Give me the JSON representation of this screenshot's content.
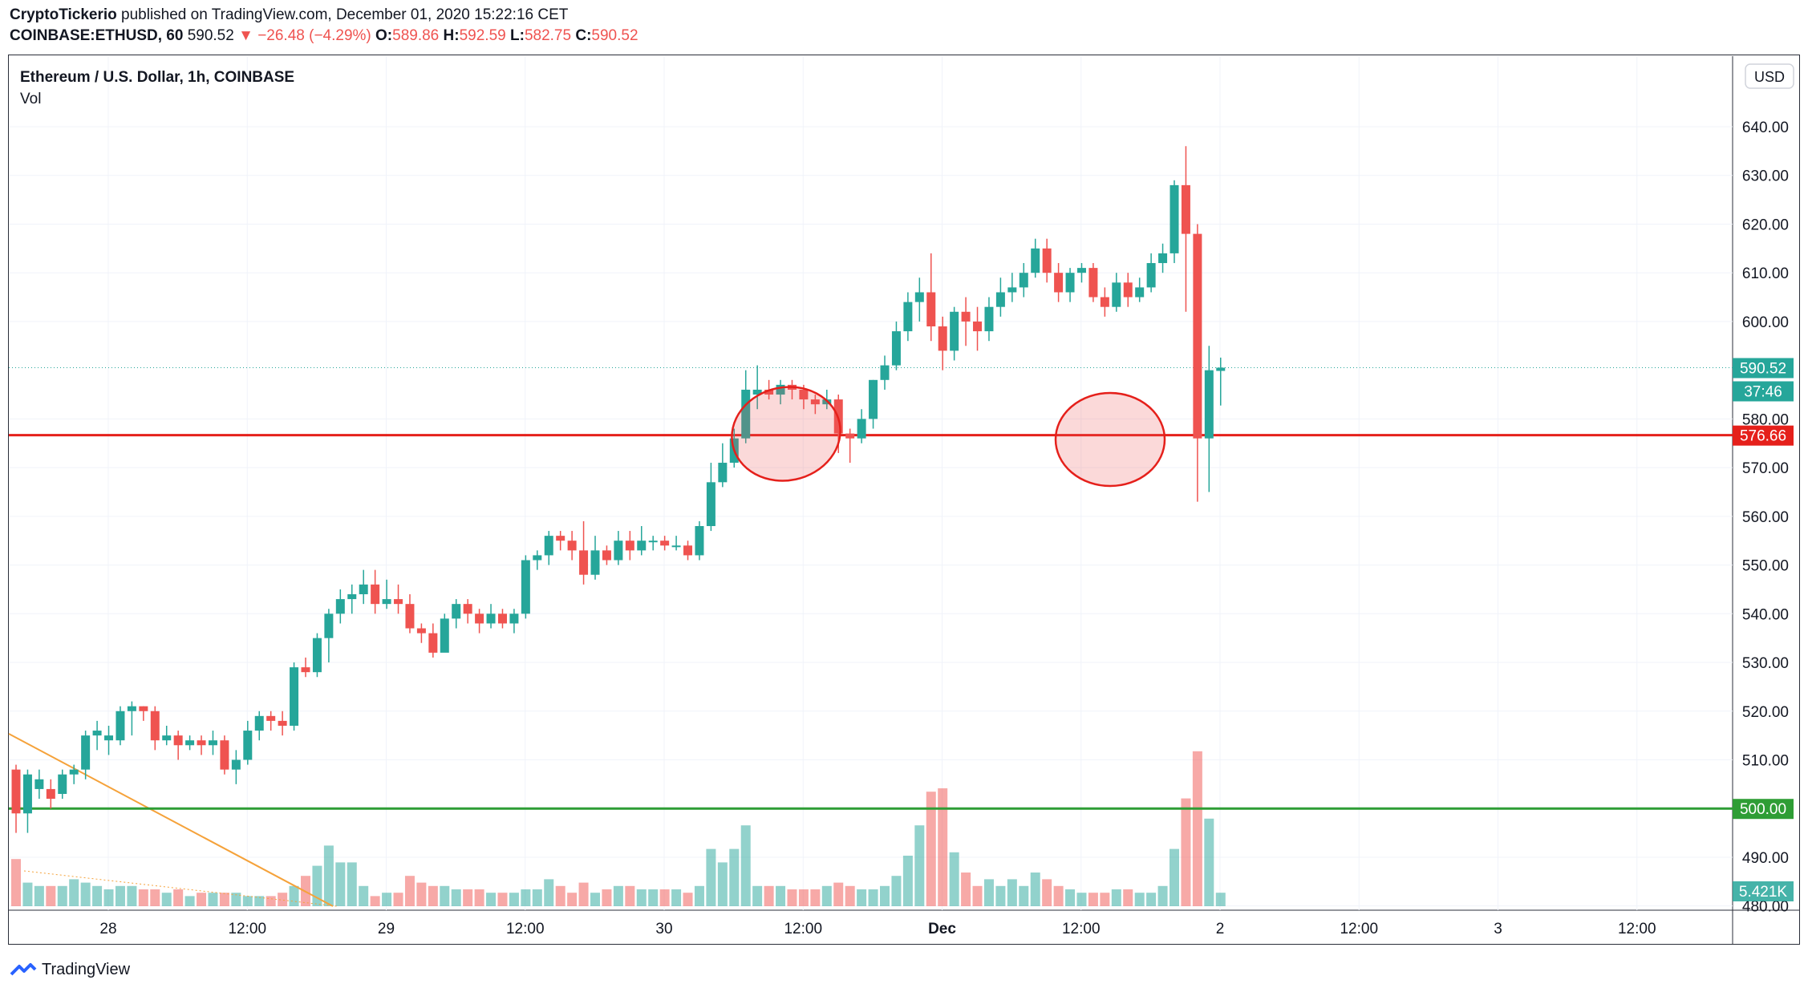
{
  "header": {
    "publisher": "CryptoTickerio",
    "published_text": "published on TradingView.com, December 01, 2020 15:22:16 CET",
    "symbol": "COINBASE:ETHUSD, 60",
    "last": "590.52",
    "change": "−26.48 (−4.29%)",
    "o_label": "O:",
    "o": "589.86",
    "h_label": "H:",
    "h": "592.59",
    "l_label": "L:",
    "l": "582.75",
    "c_label": "C:",
    "c": "590.52"
  },
  "legend": {
    "title": "Ethereum / U.S. Dollar, 1h, COINBASE",
    "volume_label": "Vol"
  },
  "currency_button": "USD",
  "footer": {
    "brand": "TradingView"
  },
  "colors": {
    "up": "#26a69a",
    "down": "#ef5350",
    "resistance": "#e5201b",
    "support": "#2e9d35",
    "trend": "#f5a23a"
  },
  "chart_data": {
    "type": "candlestick",
    "title": "Ethereum / U.S. Dollar, 1h, COINBASE",
    "ylim": [
      480,
      645
    ],
    "y_ticks": [
      "640.00",
      "630.00",
      "620.00",
      "610.00",
      "600.00",
      "580.00",
      "570.00",
      "560.00",
      "550.00",
      "540.00",
      "530.00",
      "520.00",
      "510.00",
      "490.00",
      "480.00"
    ],
    "x_labels": [
      "28",
      "12:00",
      "29",
      "12:00",
      "30",
      "12:00",
      "Dec",
      "12:00",
      "2",
      "12:00",
      "3",
      "12:00"
    ],
    "horizontal_lines": [
      {
        "label": "576.66",
        "price": 576.66,
        "color": "#e5201b"
      },
      {
        "label": "500.00",
        "price": 500.0,
        "color": "#2e9d35"
      }
    ],
    "price_labels": [
      {
        "label": "590.52",
        "price": 590.52,
        "color": "#26a69a"
      },
      {
        "label": "37:46",
        "price": 586.3,
        "color": "#26a69a"
      }
    ],
    "volume_label": "5.421K",
    "candles": [
      [
        508,
        499,
        509,
        495,
        1.4
      ],
      [
        499,
        507,
        508,
        495,
        0.7
      ],
      [
        504,
        506,
        508,
        502,
        0.6
      ],
      [
        504,
        502,
        506,
        500,
        0.6
      ],
      [
        503,
        507,
        508,
        502,
        0.6
      ],
      [
        507,
        508,
        509,
        505,
        0.8
      ],
      [
        508,
        515,
        516,
        506,
        0.7
      ],
      [
        515,
        516,
        518,
        512,
        0.6
      ],
      [
        514,
        515,
        517,
        511,
        0.5
      ],
      [
        514,
        520,
        521,
        513,
        0.6
      ],
      [
        520,
        521,
        522,
        515,
        0.6
      ],
      [
        521,
        520,
        521,
        518,
        0.5
      ],
      [
        520,
        514,
        521,
        512,
        0.5
      ],
      [
        514,
        515,
        517,
        513,
        0.4
      ],
      [
        515,
        513,
        516,
        510,
        0.5
      ],
      [
        513,
        514,
        515,
        512,
        0.3
      ],
      [
        514,
        513,
        515,
        511,
        0.4
      ],
      [
        513,
        514,
        516,
        511,
        0.4
      ],
      [
        514,
        508,
        515,
        507,
        0.4
      ],
      [
        508,
        510,
        512,
        505,
        0.4
      ],
      [
        510,
        516,
        518,
        509,
        0.3
      ],
      [
        516,
        519,
        520,
        514,
        0.3
      ],
      [
        519,
        518,
        520,
        516,
        0.3
      ],
      [
        518,
        517,
        520,
        515,
        0.4
      ],
      [
        517,
        529,
        530,
        516,
        0.6
      ],
      [
        529,
        528,
        531,
        527,
        0.9
      ],
      [
        528,
        535,
        536,
        527,
        1.2
      ],
      [
        535,
        540,
        541,
        530,
        1.8
      ],
      [
        540,
        543,
        545,
        538,
        1.3
      ],
      [
        543,
        544,
        546,
        540,
        1.3
      ],
      [
        544,
        546,
        549,
        542,
        0.6
      ],
      [
        546,
        542,
        549,
        540,
        0.3
      ],
      [
        542,
        543,
        547,
        541,
        0.4
      ],
      [
        543,
        542,
        546,
        540,
        0.4
      ],
      [
        542,
        537,
        544,
        536,
        0.9
      ],
      [
        537,
        536,
        538,
        534,
        0.7
      ],
      [
        536,
        532,
        538,
        531,
        0.6
      ],
      [
        532,
        539,
        540,
        533,
        0.6
      ],
      [
        539,
        542,
        543,
        537,
        0.5
      ],
      [
        542,
        540,
        543,
        538,
        0.5
      ],
      [
        540,
        538,
        541,
        536,
        0.5
      ],
      [
        538,
        540,
        542,
        537,
        0.4
      ],
      [
        540,
        538,
        541,
        537,
        0.4
      ],
      [
        538,
        540,
        541,
        536,
        0.4
      ],
      [
        540,
        551,
        552,
        539,
        0.5
      ],
      [
        551,
        552,
        553,
        549,
        0.5
      ],
      [
        552,
        556,
        557,
        550,
        0.8
      ],
      [
        556,
        555,
        557,
        553,
        0.6
      ],
      [
        555,
        553,
        557,
        551,
        0.4
      ],
      [
        553,
        548,
        559,
        546,
        0.7
      ],
      [
        548,
        553,
        556,
        547,
        0.4
      ],
      [
        553,
        551,
        554,
        550,
        0.5
      ],
      [
        551,
        555,
        557,
        550,
        0.6
      ],
      [
        555,
        553,
        557,
        551,
        0.6
      ],
      [
        553,
        555,
        558,
        552,
        0.5
      ],
      [
        555,
        555,
        556,
        553,
        0.5
      ],
      [
        555,
        554,
        556,
        553,
        0.5
      ],
      [
        554,
        554,
        556,
        553,
        0.5
      ],
      [
        554,
        552,
        555,
        551,
        0.4
      ],
      [
        552,
        558,
        559,
        551,
        0.6
      ],
      [
        558,
        567,
        571,
        557,
        1.7
      ],
      [
        567,
        571,
        575,
        566,
        1.3
      ],
      [
        571,
        576,
        578,
        570,
        1.7
      ],
      [
        576,
        586,
        590,
        575,
        2.4
      ],
      [
        585,
        586,
        591,
        582,
        0.6
      ],
      [
        586,
        585,
        588,
        584,
        0.6
      ],
      [
        585,
        587,
        588,
        583,
        0.6
      ],
      [
        587,
        586,
        588,
        584,
        0.5
      ],
      [
        586,
        584,
        587,
        582,
        0.5
      ],
      [
        584,
        583,
        585,
        581,
        0.5
      ],
      [
        583,
        584,
        586,
        582,
        0.6
      ],
      [
        584,
        577,
        585,
        573,
        0.7
      ],
      [
        577,
        576,
        578,
        571,
        0.6
      ],
      [
        576,
        580,
        582,
        575,
        0.5
      ],
      [
        580,
        588,
        588,
        578,
        0.5
      ],
      [
        588,
        591,
        593,
        586,
        0.6
      ],
      [
        591,
        598,
        600,
        590,
        0.9
      ],
      [
        598,
        604,
        606,
        596,
        1.5
      ],
      [
        604,
        606,
        609,
        600,
        2.4
      ],
      [
        606,
        599,
        614,
        596,
        3.4
      ],
      [
        599,
        594,
        601,
        590,
        3.5
      ],
      [
        594,
        602,
        603,
        592,
        1.6
      ],
      [
        602,
        600,
        605,
        595,
        1.0
      ],
      [
        600,
        598,
        603,
        594,
        0.6
      ],
      [
        598,
        603,
        605,
        596,
        0.8
      ],
      [
        603,
        606,
        609,
        601,
        0.6
      ],
      [
        606,
        607,
        610,
        604,
        0.8
      ],
      [
        607,
        610,
        612,
        605,
        0.6
      ],
      [
        610,
        615,
        617,
        609,
        1.0
      ],
      [
        615,
        610,
        617,
        608,
        0.8
      ],
      [
        610,
        606,
        612,
        604,
        0.6
      ],
      [
        606,
        610,
        611,
        604,
        0.5
      ],
      [
        610,
        611,
        612,
        608,
        0.4
      ],
      [
        611,
        605,
        612,
        604,
        0.4
      ],
      [
        605,
        603,
        607,
        601,
        0.4
      ],
      [
        603,
        608,
        610,
        602,
        0.5
      ],
      [
        608,
        605,
        610,
        603,
        0.5
      ],
      [
        605,
        607,
        609,
        604,
        0.4
      ],
      [
        607,
        612,
        614,
        606,
        0.4
      ],
      [
        612,
        614,
        616,
        610,
        0.6
      ],
      [
        614,
        628,
        629,
        612,
        1.7
      ],
      [
        628,
        618,
        636,
        602,
        3.2
      ],
      [
        618,
        576,
        620,
        563,
        4.6
      ],
      [
        576,
        590,
        595,
        565,
        2.6
      ],
      [
        589.86,
        590.52,
        592.59,
        582.75,
        0.4
      ]
    ]
  }
}
